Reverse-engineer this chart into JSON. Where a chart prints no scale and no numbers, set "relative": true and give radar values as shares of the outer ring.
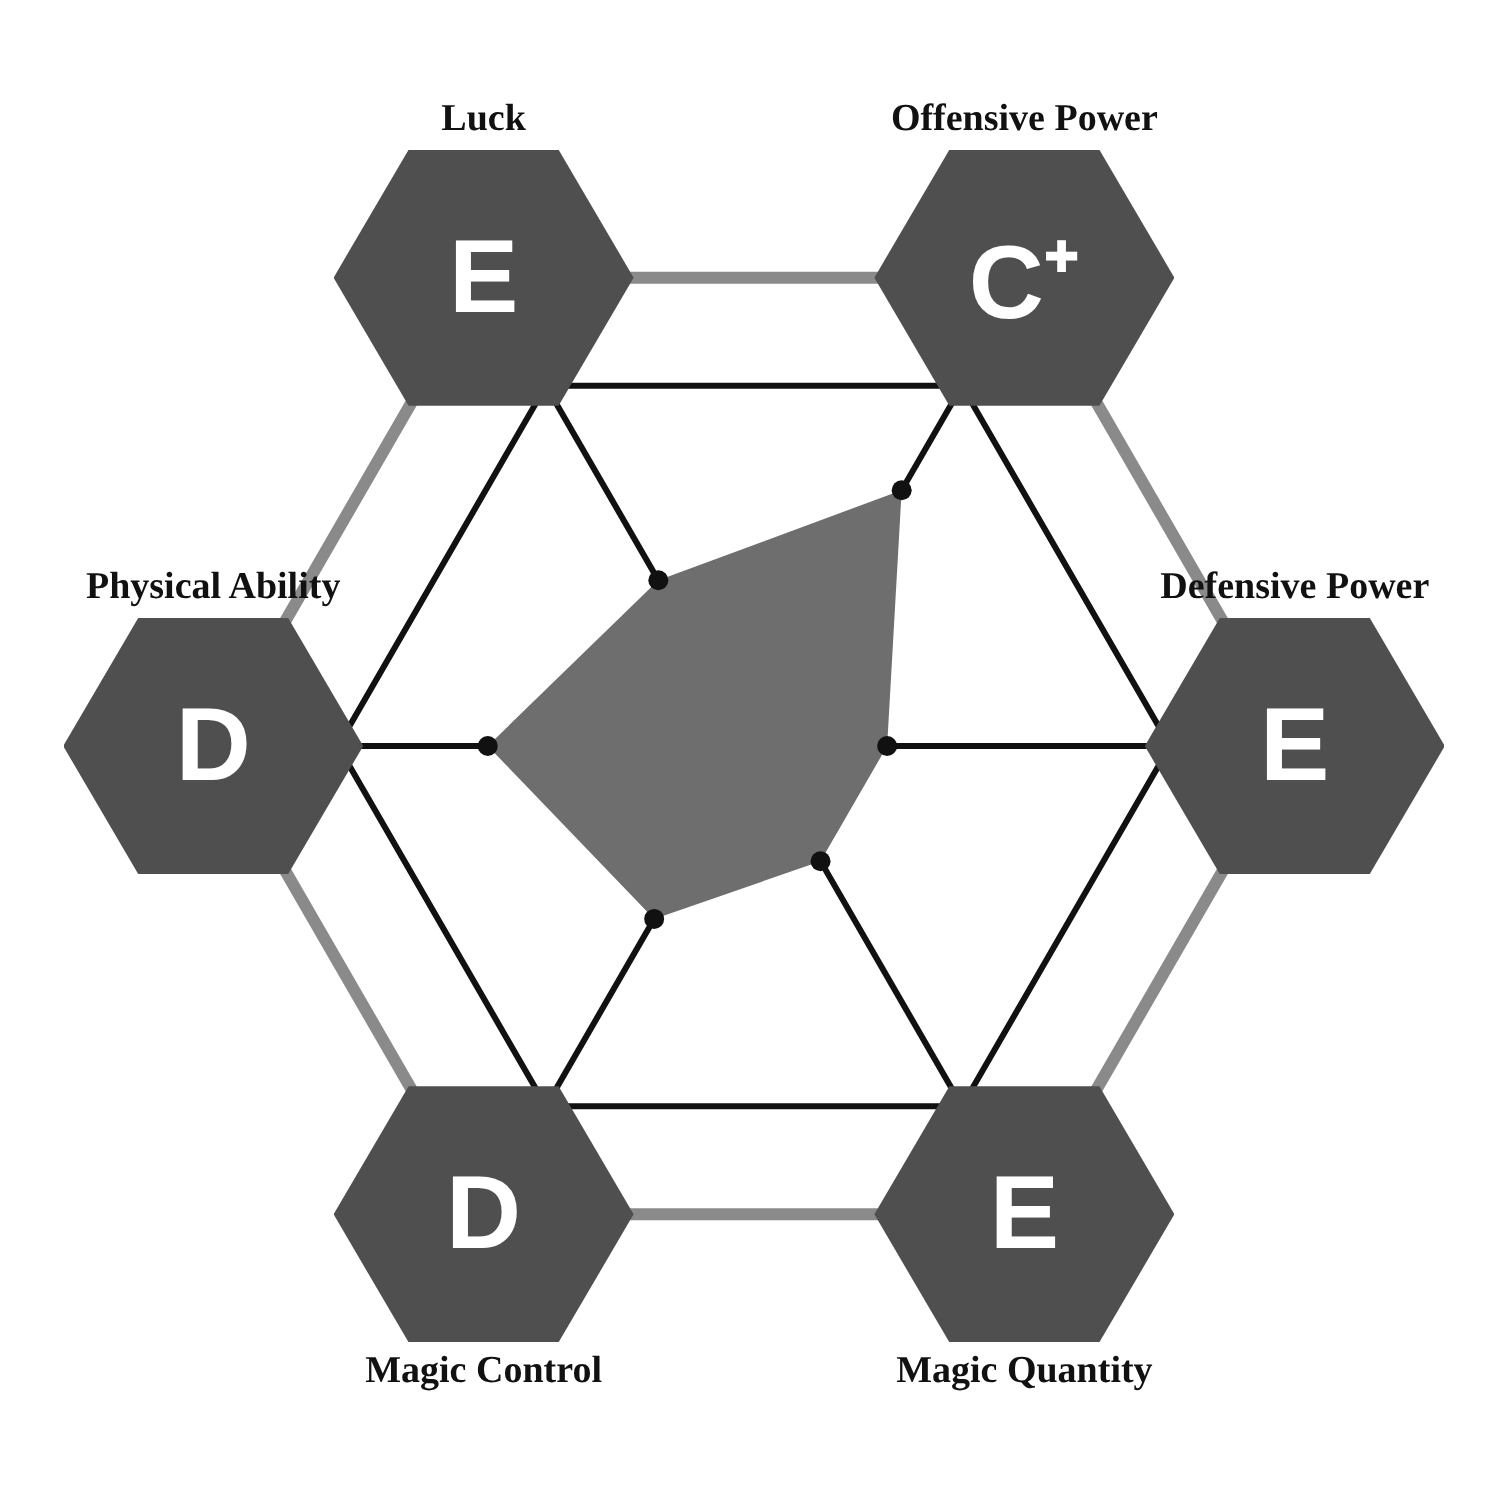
{
  "chart_data": {
    "type": "radar",
    "relative": true,
    "grid": true,
    "marker": "circle",
    "legend": false,
    "categories": [
      "Offensive Power",
      "Defensive Power",
      "Magic Quantity",
      "Magic Control",
      "Physical Ability",
      "Luck"
    ],
    "annotations": [
      "C⁺",
      "E",
      "E",
      "D",
      "D",
      "E"
    ],
    "series": [
      {
        "color": "#6e6e6e",
        "values": [
          0.71,
          0.32,
          0.32,
          0.48,
          0.64,
          0.46
        ]
      }
    ]
  }
}
